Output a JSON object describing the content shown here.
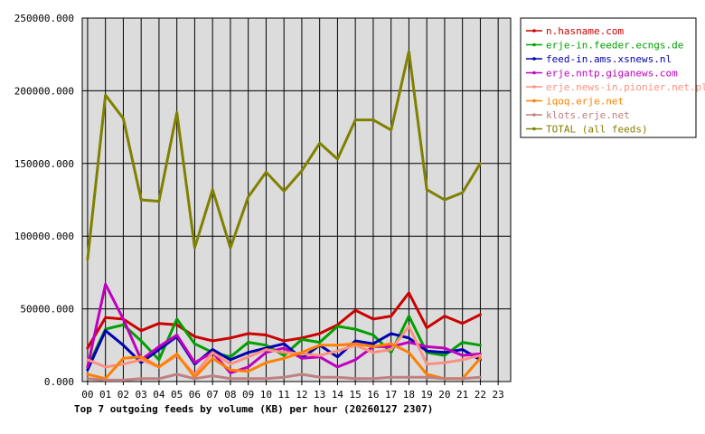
{
  "chart_data": {
    "type": "line",
    "title": "Top 7 outgoing feeds by volume (KB) per hour (20260127 2307)",
    "xlabel": "",
    "ylabel": "",
    "categories": [
      "00",
      "01",
      "02",
      "03",
      "04",
      "05",
      "06",
      "07",
      "08",
      "09",
      "10",
      "11",
      "12",
      "13",
      "14",
      "15",
      "16",
      "17",
      "18",
      "19",
      "20",
      "21",
      "22",
      "23"
    ],
    "yticks": [
      "0.000",
      "50000.000",
      "100000.000",
      "150000.000",
      "200000.000",
      "250000.000"
    ],
    "ylim": [
      0,
      250000
    ],
    "grid": true,
    "legend_position": "top-right",
    "series": [
      {
        "name": "n.hasname.com",
        "color": "#cc0000",
        "values": [
          23000,
          44000,
          43000,
          35000,
          40000,
          39000,
          31000,
          28000,
          30000,
          33000,
          32000,
          28000,
          30000,
          33000,
          39000,
          49000,
          43000,
          45000,
          61000,
          37000,
          45000,
          40000,
          46000,
          null
        ]
      },
      {
        "name": "erje-in.feeder.ecngs.de",
        "color": "#00a000",
        "values": [
          10000,
          36000,
          39000,
          28000,
          15000,
          43000,
          26000,
          20000,
          17000,
          27000,
          25000,
          18000,
          29000,
          27000,
          38000,
          36000,
          32000,
          20000,
          45000,
          20000,
          18000,
          27000,
          25000,
          null
        ]
      },
      {
        "name": "feed-in.ams.xsnews.nl",
        "color": "#0000b0",
        "values": [
          8000,
          35000,
          25000,
          13000,
          22000,
          31000,
          12000,
          22000,
          15000,
          20000,
          23000,
          26000,
          16000,
          25000,
          17000,
          28000,
          26000,
          33000,
          30000,
          21000,
          20000,
          22000,
          15000,
          null
        ]
      },
      {
        "name": "erje.nntp.giganews.com",
        "color": "#c000c0",
        "values": [
          10000,
          67000,
          43000,
          15000,
          24000,
          32000,
          13000,
          20000,
          6000,
          10000,
          20000,
          23000,
          16000,
          17000,
          10000,
          15000,
          24000,
          24000,
          27000,
          24000,
          23000,
          18000,
          19000,
          null
        ]
      },
      {
        "name": "erje.news-in.pionier.net.pl",
        "color": "#ff9080",
        "values": [
          15000,
          10000,
          12000,
          15000,
          10000,
          18000,
          5000,
          20000,
          12000,
          17000,
          22000,
          20000,
          19000,
          18000,
          21000,
          25000,
          20000,
          22000,
          38000,
          12000,
          13000,
          15000,
          18000,
          null
        ]
      },
      {
        "name": "iqoq.erje.net",
        "color": "#ff8000",
        "values": [
          5000,
          2000,
          16000,
          17000,
          10000,
          19000,
          3000,
          16000,
          8000,
          7000,
          13000,
          16000,
          20000,
          25000,
          25000,
          26000,
          24000,
          26000,
          20000,
          5000,
          2000,
          2000,
          16000,
          null
        ]
      },
      {
        "name": "klots.erje.net",
        "color": "#c08080",
        "values": [
          2000,
          1000,
          1000,
          2000,
          2000,
          5000,
          2000,
          4000,
          2000,
          2000,
          2000,
          3000,
          5000,
          3000,
          3000,
          2000,
          2000,
          3000,
          3000,
          3000,
          2000,
          2000,
          3000,
          null
        ]
      },
      {
        "name": "TOTAL (all feeds)",
        "color": "#808000",
        "values": [
          84000,
          197000,
          181000,
          125000,
          124000,
          185000,
          92000,
          132000,
          92000,
          127000,
          144000,
          131000,
          145000,
          164000,
          153000,
          180000,
          180000,
          173000,
          227000,
          132000,
          125000,
          130000,
          150000,
          null
        ]
      }
    ]
  }
}
